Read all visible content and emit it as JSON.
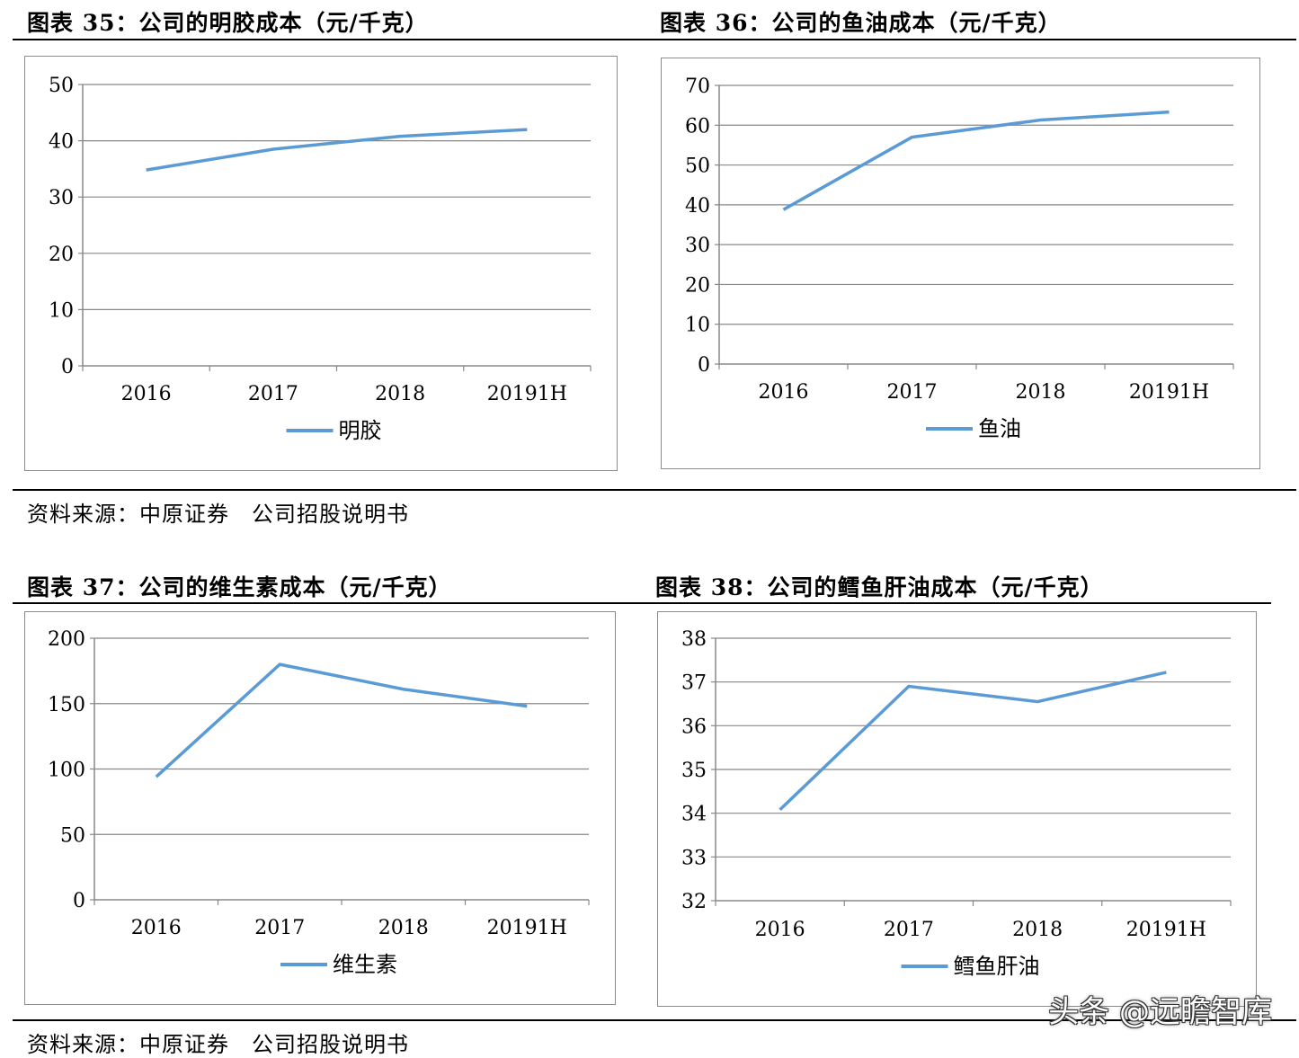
{
  "titles": {
    "fig35": "图表 35：公司的明胶成本（元/千克）",
    "fig36": "图表 36：公司的鱼油成本（元/千克）",
    "fig37": "图表 37：公司的维生素成本（元/千克）",
    "fig38": "图表 38：公司的鳕鱼肝油成本（元/千克）"
  },
  "sources": {
    "top": "资料来源：中原证券　公司招股说明书",
    "bottom": "资料来源：中原证券　公司招股说明书"
  },
  "watermark": "头条 @远瞻智库",
  "colors": {
    "line": "#5b9bd5",
    "grid": "#888888",
    "axis": "#888888"
  },
  "chart_data": [
    {
      "type": "line",
      "categories": [
        "2016",
        "2017",
        "2018",
        "20191H"
      ],
      "series": [
        {
          "name": "明胶",
          "values": [
            34.8,
            38.5,
            40.8,
            42.0
          ]
        }
      ],
      "ylim": [
        0,
        50
      ],
      "yticks": [
        0,
        10,
        20,
        30,
        40,
        50
      ],
      "grid": true,
      "legend": "bottom"
    },
    {
      "type": "line",
      "categories": [
        "2016",
        "2017",
        "2018",
        "20191H"
      ],
      "series": [
        {
          "name": "鱼油",
          "values": [
            38.8,
            57.0,
            61.3,
            63.3
          ]
        }
      ],
      "ylim": [
        0,
        70
      ],
      "yticks": [
        0,
        10,
        20,
        30,
        40,
        50,
        60,
        70
      ],
      "grid": true,
      "legend": "bottom"
    },
    {
      "type": "line",
      "categories": [
        "2016",
        "2017",
        "2018",
        "20191H"
      ],
      "series": [
        {
          "name": "维生素",
          "values": [
            94,
            180,
            161,
            148
          ]
        }
      ],
      "ylim": [
        0,
        200
      ],
      "yticks": [
        0,
        50,
        100,
        150,
        200
      ],
      "grid": true,
      "legend": "bottom"
    },
    {
      "type": "line",
      "categories": [
        "2016",
        "2017",
        "2018",
        "20191H"
      ],
      "series": [
        {
          "name": "鳕鱼肝油",
          "values": [
            34.08,
            36.9,
            36.55,
            37.22
          ]
        }
      ],
      "ylim": [
        32,
        38
      ],
      "yticks": [
        32,
        33,
        34,
        35,
        36,
        37,
        38
      ],
      "grid": true,
      "legend": "bottom"
    }
  ]
}
